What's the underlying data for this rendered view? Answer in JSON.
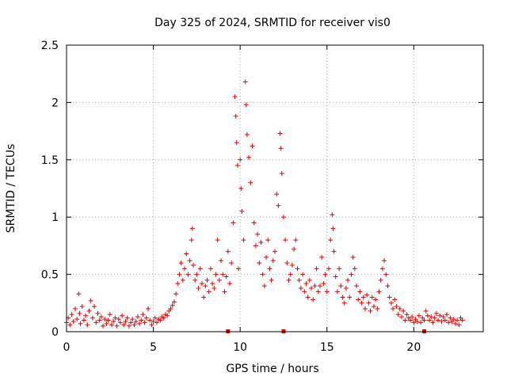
{
  "chart_data": {
    "type": "scatter",
    "title": "Day 325 of 2024, SRMTID for receiver vis0",
    "xlabel": "GPS time / hours",
    "ylabel": "SRMTID / TECUs",
    "xlim": [
      0,
      24
    ],
    "ylim": [
      0,
      2.5
    ],
    "x_ticks": [
      0,
      5,
      10,
      15,
      20
    ],
    "x_tick_labels": [
      "0",
      "5",
      "10",
      "15",
      "20"
    ],
    "y_ticks": [
      0,
      0.5,
      1,
      1.5,
      2,
      2.5
    ],
    "y_tick_labels": [
      "0",
      "0.5",
      "1",
      "1.5",
      "2",
      "2.5"
    ],
    "grid": true,
    "marker": "+",
    "series_color": "#e00000",
    "series": [
      {
        "name": "SRMTID",
        "points": [
          [
            0.0,
            0.08
          ],
          [
            0.1,
            0.12
          ],
          [
            0.2,
            0.06
          ],
          [
            0.3,
            0.15
          ],
          [
            0.4,
            0.09
          ],
          [
            0.5,
            0.2
          ],
          [
            0.6,
            0.11
          ],
          [
            0.7,
            0.33
          ],
          [
            0.75,
            0.16
          ],
          [
            0.8,
            0.07
          ],
          [
            0.9,
            0.22
          ],
          [
            1.0,
            0.1
          ],
          [
            1.1,
            0.14
          ],
          [
            1.2,
            0.06
          ],
          [
            1.3,
            0.18
          ],
          [
            1.4,
            0.27
          ],
          [
            1.5,
            0.12
          ],
          [
            1.6,
            0.22
          ],
          [
            1.7,
            0.08
          ],
          [
            1.8,
            0.16
          ],
          [
            1.9,
            0.1
          ],
          [
            2.0,
            0.13
          ],
          [
            2.1,
            0.05
          ],
          [
            2.2,
            0.11
          ],
          [
            2.3,
            0.07
          ],
          [
            2.4,
            0.1
          ],
          [
            2.5,
            0.15
          ],
          [
            2.6,
            0.06
          ],
          [
            2.7,
            0.09
          ],
          [
            2.8,
            0.12
          ],
          [
            2.9,
            0.05
          ],
          [
            3.0,
            0.11
          ],
          [
            3.1,
            0.08
          ],
          [
            3.2,
            0.14
          ],
          [
            3.3,
            0.06
          ],
          [
            3.4,
            0.09
          ],
          [
            3.5,
            0.12
          ],
          [
            3.6,
            0.05
          ],
          [
            3.7,
            0.08
          ],
          [
            3.8,
            0.11
          ],
          [
            3.9,
            0.06
          ],
          [
            4.0,
            0.09
          ],
          [
            4.1,
            0.13
          ],
          [
            4.2,
            0.07
          ],
          [
            4.3,
            0.1
          ],
          [
            4.4,
            0.15
          ],
          [
            4.5,
            0.08
          ],
          [
            4.6,
            0.12
          ],
          [
            4.7,
            0.2
          ],
          [
            4.8,
            0.1
          ],
          [
            4.9,
            0.06
          ],
          [
            5.0,
            0.09
          ],
          [
            5.1,
            0.12
          ],
          [
            5.2,
            0.08
          ],
          [
            5.3,
            0.11
          ],
          [
            5.4,
            0.1
          ],
          [
            5.5,
            0.13
          ],
          [
            5.6,
            0.12
          ],
          [
            5.7,
            0.15
          ],
          [
            5.8,
            0.14
          ],
          [
            5.9,
            0.18
          ],
          [
            6.0,
            0.2
          ],
          [
            6.1,
            0.23
          ],
          [
            6.2,
            0.26
          ],
          [
            6.3,
            0.33
          ],
          [
            6.4,
            0.42
          ],
          [
            6.5,
            0.5
          ],
          [
            6.6,
            0.6
          ],
          [
            6.7,
            0.45
          ],
          [
            6.8,
            0.55
          ],
          [
            6.9,
            0.68
          ],
          [
            7.0,
            0.5
          ],
          [
            7.1,
            0.62
          ],
          [
            7.2,
            0.8
          ],
          [
            7.25,
            0.9
          ],
          [
            7.3,
            0.58
          ],
          [
            7.4,
            0.45
          ],
          [
            7.5,
            0.5
          ],
          [
            7.6,
            0.38
          ],
          [
            7.7,
            0.55
          ],
          [
            7.8,
            0.42
          ],
          [
            7.9,
            0.3
          ],
          [
            8.0,
            0.4
          ],
          [
            8.1,
            0.45
          ],
          [
            8.2,
            0.35
          ],
          [
            8.3,
            0.55
          ],
          [
            8.4,
            0.42
          ],
          [
            8.5,
            0.38
          ],
          [
            8.6,
            0.5
          ],
          [
            8.7,
            0.8
          ],
          [
            8.8,
            0.45
          ],
          [
            8.9,
            0.62
          ],
          [
            9.0,
            0.5
          ],
          [
            9.1,
            0.35
          ],
          [
            9.2,
            0.48
          ],
          [
            9.3,
            0.7
          ],
          [
            9.4,
            0.42
          ],
          [
            9.5,
            0.6
          ],
          [
            9.6,
            0.95
          ],
          [
            9.7,
            2.05
          ],
          [
            9.75,
            1.88
          ],
          [
            9.8,
            1.65
          ],
          [
            9.85,
            1.45
          ],
          [
            9.9,
            0.55
          ],
          [
            10.0,
            1.5
          ],
          [
            10.05,
            1.25
          ],
          [
            10.1,
            1.05
          ],
          [
            10.2,
            0.8
          ],
          [
            10.3,
            2.18
          ],
          [
            10.35,
            1.98
          ],
          [
            10.4,
            1.72
          ],
          [
            10.5,
            1.52
          ],
          [
            10.6,
            1.3
          ],
          [
            10.7,
            1.62
          ],
          [
            10.8,
            0.95
          ],
          [
            10.9,
            0.75
          ],
          [
            11.0,
            0.85
          ],
          [
            11.1,
            0.6
          ],
          [
            11.2,
            0.78
          ],
          [
            11.3,
            0.5
          ],
          [
            11.4,
            0.4
          ],
          [
            11.5,
            0.65
          ],
          [
            11.6,
            0.8
          ],
          [
            11.7,
            0.55
          ],
          [
            11.8,
            0.45
          ],
          [
            11.9,
            0.62
          ],
          [
            12.0,
            0.7
          ],
          [
            12.1,
            1.2
          ],
          [
            12.2,
            1.1
          ],
          [
            12.3,
            1.73
          ],
          [
            12.35,
            1.6
          ],
          [
            12.4,
            1.38
          ],
          [
            12.5,
            1.0
          ],
          [
            12.6,
            0.8
          ],
          [
            12.7,
            0.6
          ],
          [
            12.8,
            0.45
          ],
          [
            12.9,
            0.5
          ],
          [
            13.0,
            0.58
          ],
          [
            13.1,
            0.72
          ],
          [
            13.2,
            0.8
          ],
          [
            13.3,
            0.55
          ],
          [
            13.4,
            0.45
          ],
          [
            13.5,
            0.38
          ],
          [
            13.6,
            0.5
          ],
          [
            13.7,
            0.35
          ],
          [
            13.8,
            0.42
          ],
          [
            13.9,
            0.3
          ],
          [
            14.0,
            0.45
          ],
          [
            14.1,
            0.38
          ],
          [
            14.2,
            0.28
          ],
          [
            14.3,
            0.4
          ],
          [
            14.4,
            0.55
          ],
          [
            14.5,
            0.35
          ],
          [
            14.6,
            0.4
          ],
          [
            14.7,
            0.65
          ],
          [
            14.8,
            0.42
          ],
          [
            14.9,
            0.5
          ],
          [
            15.0,
            0.35
          ],
          [
            15.1,
            0.55
          ],
          [
            15.2,
            0.8
          ],
          [
            15.3,
            1.02
          ],
          [
            15.35,
            0.9
          ],
          [
            15.4,
            0.7
          ],
          [
            15.5,
            0.48
          ],
          [
            15.6,
            0.35
          ],
          [
            15.7,
            0.55
          ],
          [
            15.8,
            0.4
          ],
          [
            15.9,
            0.3
          ],
          [
            16.0,
            0.25
          ],
          [
            16.1,
            0.38
          ],
          [
            16.2,
            0.45
          ],
          [
            16.3,
            0.3
          ],
          [
            16.4,
            0.5
          ],
          [
            16.5,
            0.65
          ],
          [
            16.6,
            0.55
          ],
          [
            16.7,
            0.4
          ],
          [
            16.8,
            0.28
          ],
          [
            16.9,
            0.35
          ],
          [
            17.0,
            0.25
          ],
          [
            17.1,
            0.3
          ],
          [
            17.2,
            0.2
          ],
          [
            17.3,
            0.32
          ],
          [
            17.4,
            0.25
          ],
          [
            17.5,
            0.18
          ],
          [
            17.6,
            0.3
          ],
          [
            17.7,
            0.22
          ],
          [
            17.8,
            0.28
          ],
          [
            17.9,
            0.2
          ],
          [
            18.0,
            0.35
          ],
          [
            18.1,
            0.45
          ],
          [
            18.2,
            0.55
          ],
          [
            18.3,
            0.62
          ],
          [
            18.4,
            0.5
          ],
          [
            18.5,
            0.4
          ],
          [
            18.6,
            0.3
          ],
          [
            18.7,
            0.25
          ],
          [
            18.8,
            0.2
          ],
          [
            18.9,
            0.28
          ],
          [
            19.0,
            0.22
          ],
          [
            19.1,
            0.15
          ],
          [
            19.2,
            0.2
          ],
          [
            19.3,
            0.13
          ],
          [
            19.4,
            0.18
          ],
          [
            19.5,
            0.1
          ],
          [
            19.6,
            0.15
          ],
          [
            19.7,
            0.12
          ],
          [
            19.8,
            0.1
          ],
          [
            19.9,
            0.13
          ],
          [
            20.0,
            0.08
          ],
          [
            20.1,
            0.11
          ],
          [
            20.2,
            0.09
          ],
          [
            20.3,
            0.14
          ],
          [
            20.4,
            0.08
          ],
          [
            20.5,
            0.12
          ],
          [
            20.6,
            0.1
          ],
          [
            20.7,
            0.18
          ],
          [
            20.8,
            0.14
          ],
          [
            20.9,
            0.1
          ],
          [
            21.0,
            0.13
          ],
          [
            21.1,
            0.08
          ],
          [
            21.2,
            0.12
          ],
          [
            21.3,
            0.16
          ],
          [
            21.4,
            0.1
          ],
          [
            21.5,
            0.14
          ],
          [
            21.6,
            0.09
          ],
          [
            21.7,
            0.13
          ],
          [
            21.8,
            0.1
          ],
          [
            21.9,
            0.15
          ],
          [
            22.0,
            0.08
          ],
          [
            22.1,
            0.12
          ],
          [
            22.2,
            0.09
          ],
          [
            22.3,
            0.11
          ],
          [
            22.4,
            0.07
          ],
          [
            22.5,
            0.1
          ],
          [
            22.6,
            0.06
          ],
          [
            22.7,
            0.12
          ],
          [
            22.8,
            0.1
          ]
        ]
      }
    ],
    "baseline_markers": [
      9.3,
      12.5,
      20.6
    ]
  }
}
